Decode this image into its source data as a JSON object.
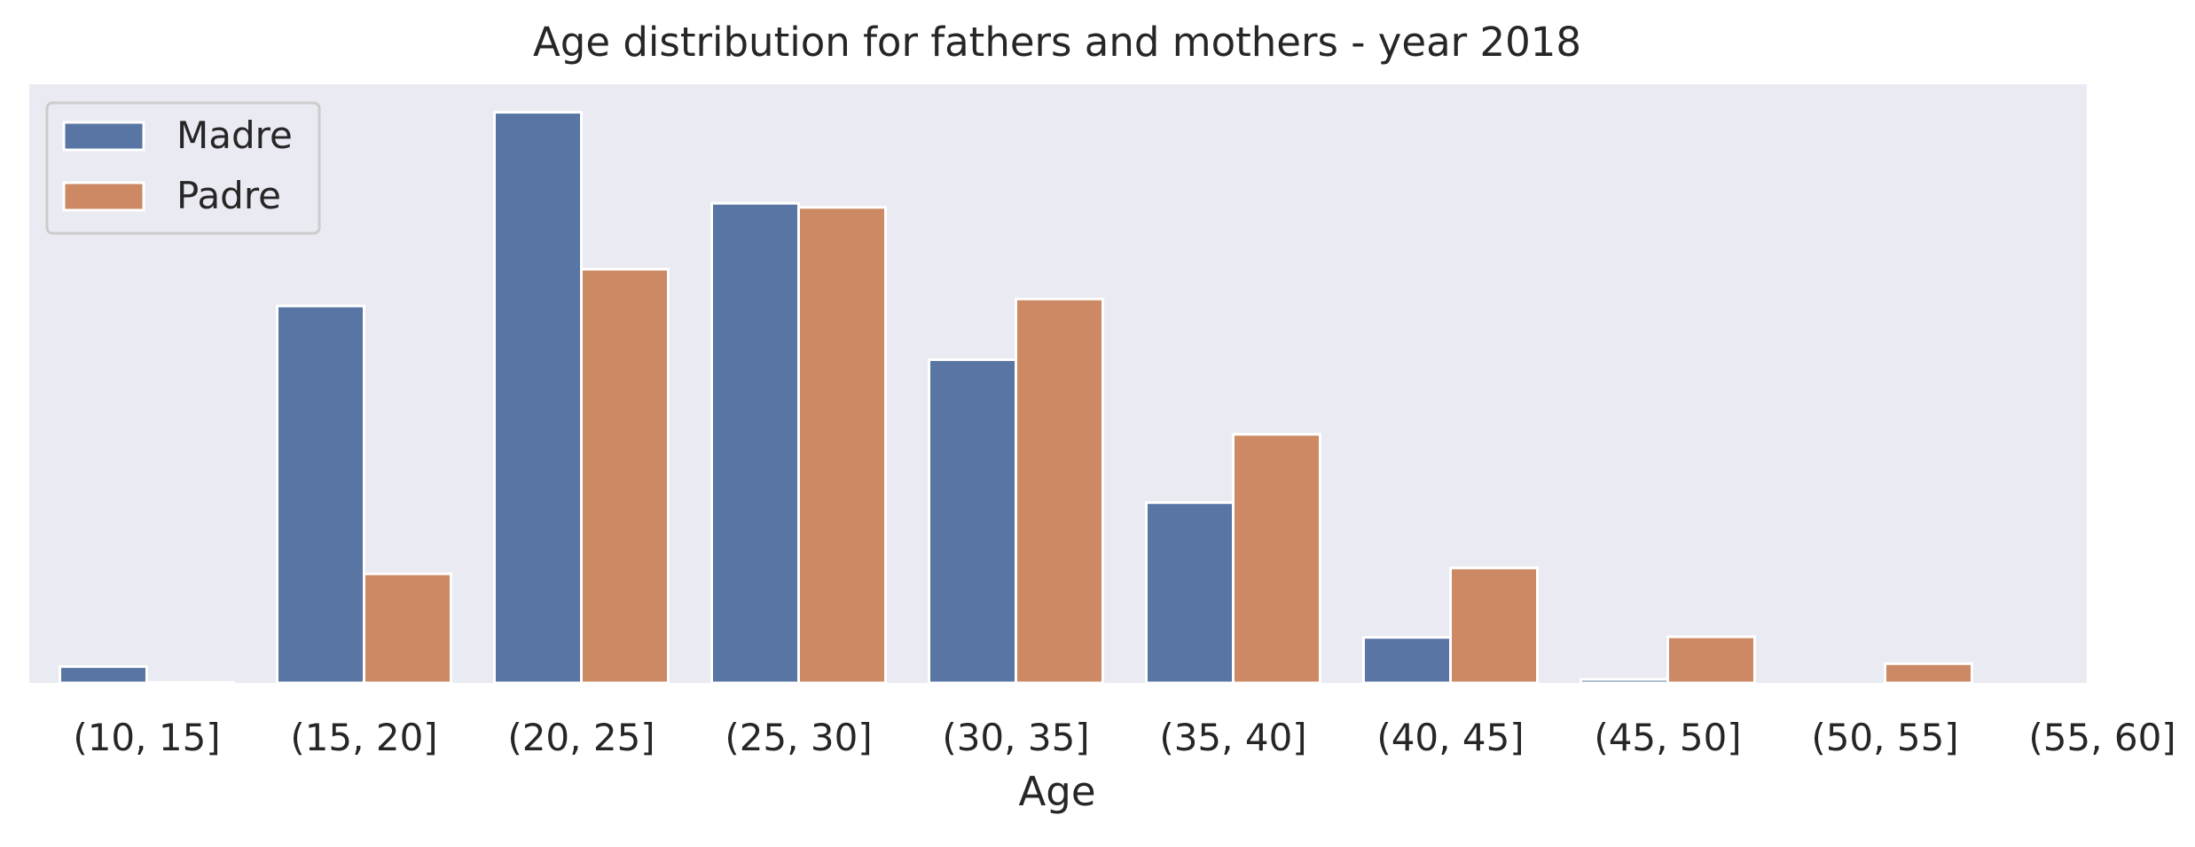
{
  "chart_data": {
    "type": "bar",
    "title": "Age distribution for fathers and mothers - year 2018",
    "xlabel": "Age",
    "ylabel": "",
    "categories": [
      "(10, 15]",
      "(15, 20]",
      "(20, 25]",
      "(25, 30]",
      "(30, 35]",
      "(35, 40]",
      "(40, 45]",
      "(45, 50]",
      "(50, 55]",
      "(55, 60]"
    ],
    "series": [
      {
        "name": "Madre",
        "color": "#5975a4",
        "values": [
          2.8,
          64.6,
          97.8,
          82.2,
          55.4,
          30.9,
          7.8,
          0.6,
          0,
          0
        ]
      },
      {
        "name": "Padre",
        "color": "#cc8963",
        "values": [
          0.1,
          18.7,
          70.9,
          81.5,
          65.8,
          42.6,
          19.7,
          7.9,
          3.3,
          0.1
        ]
      }
    ],
    "ylim": [
      0,
      102.6
    ],
    "y_ticks_shown": false,
    "grid": false,
    "legend_position": "top-left",
    "background": "#eaeaf2"
  }
}
